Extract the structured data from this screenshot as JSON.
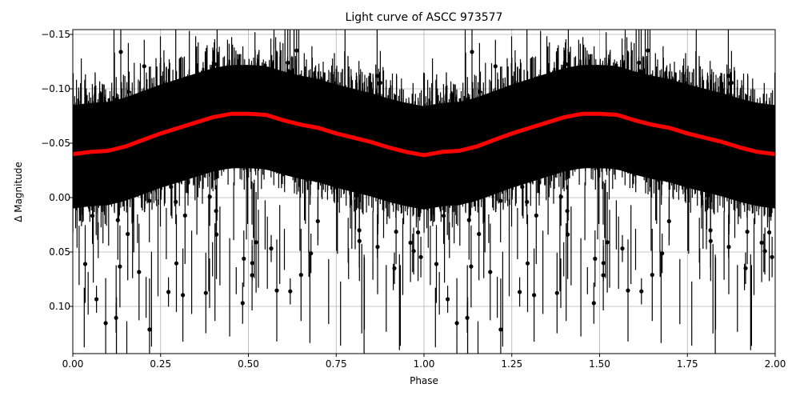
{
  "chart_data": {
    "type": "scatter",
    "title": "Light curve of ASCC 973577",
    "xlabel": "Phase",
    "ylabel": "Δ Magnitude",
    "xlim": [
      0.0,
      2.0
    ],
    "ylim": [
      0.14,
      -0.155
    ],
    "y_inverted": true,
    "grid": true,
    "legend": null,
    "x_ticks": [
      "0.00",
      "0.25",
      "0.50",
      "0.75",
      "1.00",
      "1.25",
      "1.50",
      "1.75",
      "2.00"
    ],
    "y_ticks": [
      "−0.15",
      "−0.10",
      "−0.05",
      "0.00",
      "0.05",
      "0.10"
    ],
    "series": [
      {
        "name": "observations",
        "style": "black points with vertical error bars",
        "color": "#000000",
        "description": "Dense phase-folded photometry; core scatter between about 0.00 and -0.09 with outliers spanning the full y range",
        "envelope_upper": {
          "x": [
            0.0,
            0.25,
            0.5,
            0.75,
            1.0,
            1.25,
            1.5,
            1.75,
            2.0
          ],
          "y": [
            -0.085,
            -0.095,
            -0.108,
            -0.095,
            -0.085,
            -0.095,
            -0.108,
            -0.095,
            -0.085
          ]
        }
      },
      {
        "name": "binned mean",
        "style": "thick red line",
        "color": "#ff0000",
        "x": [
          0.0,
          0.05,
          0.1,
          0.15,
          0.2,
          0.25,
          0.3,
          0.35,
          0.4,
          0.45,
          0.5,
          0.55,
          0.6,
          0.65,
          0.7,
          0.75,
          0.8,
          0.85,
          0.9,
          0.95,
          1.0,
          1.05,
          1.1,
          1.15,
          1.2,
          1.25,
          1.3,
          1.35,
          1.4,
          1.45,
          1.5,
          1.55,
          1.6,
          1.65,
          1.7,
          1.75,
          1.8,
          1.85,
          1.9,
          1.95,
          2.0
        ],
        "y": [
          -0.04,
          -0.042,
          -0.043,
          -0.047,
          -0.053,
          -0.059,
          -0.064,
          -0.069,
          -0.074,
          -0.077,
          -0.077,
          -0.076,
          -0.071,
          -0.067,
          -0.064,
          -0.059,
          -0.055,
          -0.051,
          -0.046,
          -0.042,
          -0.039,
          -0.042,
          -0.043,
          -0.047,
          -0.053,
          -0.059,
          -0.064,
          -0.069,
          -0.074,
          -0.077,
          -0.077,
          -0.076,
          -0.071,
          -0.067,
          -0.064,
          -0.059,
          -0.055,
          -0.051,
          -0.046,
          -0.042,
          -0.04
        ]
      }
    ]
  },
  "colors": {
    "background": "#ffffff",
    "points": "#000000",
    "mean_line": "#ff0000",
    "grid": "#b0b0b0"
  }
}
